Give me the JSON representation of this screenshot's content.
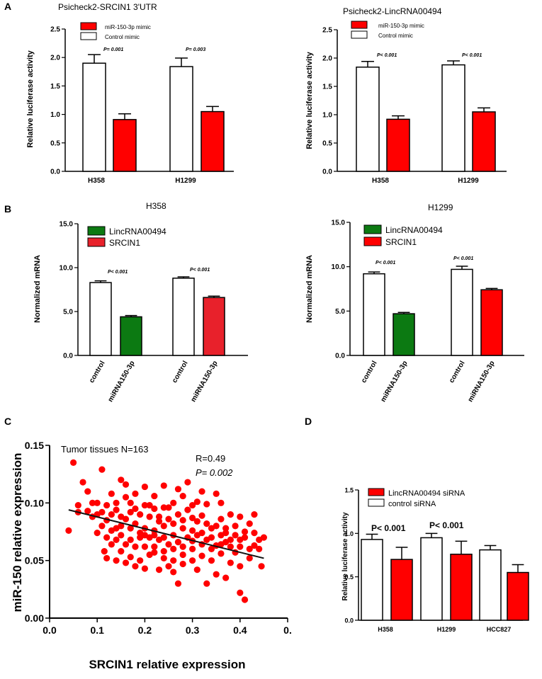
{
  "panels": [
    {
      "letter": "A"
    },
    {
      "letter": "B"
    },
    {
      "letter": "C"
    },
    {
      "letter": "D"
    }
  ],
  "chart_data": [
    {
      "id": "A1",
      "type": "bar",
      "title": "Psicheck2-SRCIN1 3'UTR",
      "xlabel": "",
      "ylabel": "Relative luciferase activity",
      "ylim": [
        0,
        2.5
      ],
      "yticks": [
        "0.0",
        "0.5",
        "1.0",
        "1.5",
        "2.0",
        "2.5"
      ],
      "categories": [
        "H358",
        "H1299"
      ],
      "series": [
        {
          "name": "Control mimic",
          "values": [
            1.9,
            1.84
          ],
          "errors": [
            0.15,
            0.15
          ],
          "color": "#ffffff"
        },
        {
          "name": "miR-150-3p mimic",
          "values": [
            0.91,
            1.05
          ],
          "errors": [
            0.1,
            0.09
          ],
          "color": "#ff0000"
        }
      ],
      "legend": [
        {
          "name": "miR-150-3p mimic",
          "color": "#ff0000"
        },
        {
          "name": "Control mimic",
          "color": "#ffffff"
        }
      ],
      "annotations": [
        "P= 0.001",
        "P= 0.003"
      ]
    },
    {
      "id": "A2",
      "type": "bar",
      "title": "Psicheck2-LincRNA00494",
      "xlabel": "",
      "ylabel": "Relative luciferase activity",
      "ylim": [
        0,
        2.5
      ],
      "yticks": [
        "0.0",
        "0.5",
        "1.0",
        "1.5",
        "2.0",
        "2.5"
      ],
      "categories": [
        "H358",
        "H1299"
      ],
      "series": [
        {
          "name": "Control mimic",
          "values": [
            1.84,
            1.88
          ],
          "errors": [
            0.1,
            0.07
          ],
          "color": "#ffffff"
        },
        {
          "name": "miR-150-3p mimic",
          "values": [
            0.92,
            1.05
          ],
          "errors": [
            0.06,
            0.07
          ],
          "color": "#ff0000"
        }
      ],
      "legend": [
        {
          "name": "miR-150-3p mimic",
          "color": "#ff0000"
        },
        {
          "name": "Control mimic",
          "color": "#ffffff"
        }
      ],
      "annotations": [
        "P< 0.001",
        "P< 0.001"
      ]
    },
    {
      "id": "B1",
      "type": "bar",
      "title": "H358",
      "xlabel": "",
      "ylabel": "Normalized mRNA",
      "ylim": [
        0,
        15
      ],
      "yticks": [
        "0.0",
        "5.0",
        "10.0",
        "15.0"
      ],
      "categories": [
        "control",
        "miRNA150-3p",
        "control",
        "miRNA150-3p"
      ],
      "values": [
        8.3,
        4.4,
        8.8,
        6.6
      ],
      "errors": [
        0.2,
        0.15,
        0.15,
        0.15
      ],
      "colors": [
        "#ffffff",
        "#0c7a12",
        "#ffffff",
        "#e8212b"
      ],
      "legend": [
        {
          "name": "LincRNA00494",
          "color": "#0c7a12"
        },
        {
          "name": "SRCIN1",
          "color": "#e8212b"
        }
      ],
      "annotations": [
        "P< 0.001",
        "P< 0.001"
      ]
    },
    {
      "id": "B2",
      "type": "bar",
      "title": "H1299",
      "xlabel": "",
      "ylabel": "Normalized mRNA",
      "ylim": [
        0,
        15
      ],
      "yticks": [
        "0.0",
        "5.0",
        "10.0",
        "15.0"
      ],
      "categories": [
        "control",
        "miRNA150-3p",
        "control",
        "miRNA150-3p"
      ],
      "values": [
        9.2,
        4.7,
        9.7,
        7.4
      ],
      "errors": [
        0.2,
        0.15,
        0.35,
        0.15
      ],
      "colors": [
        "#ffffff",
        "#0c7a12",
        "#ffffff",
        "#ff0000"
      ],
      "legend": [
        {
          "name": "LincRNA00494",
          "color": "#0c7a12"
        },
        {
          "name": "SRCIN1",
          "color": "#ff0000"
        }
      ],
      "annotations": [
        "P< 0.001",
        "P< 0.001"
      ]
    },
    {
      "id": "C",
      "type": "scatter",
      "title": "Tumor tissues  N=163",
      "xlabel": "SRCIN1  relative expression",
      "ylabel": "miR-150 relative expression",
      "xlim": [
        0.0,
        0.5
      ],
      "ylim": [
        0.0,
        0.15
      ],
      "xticks": [
        "0.0",
        "0.1",
        "0.2",
        "0.3",
        "0.4",
        "0."
      ],
      "yticks": [
        "0.00",
        "0.05",
        "0.10",
        "0.15"
      ],
      "stats": {
        "r": "R=0.49",
        "p": "P= 0.002"
      },
      "fit_line": {
        "x": [
          0.04,
          0.45
        ],
        "y": [
          0.094,
          0.052
        ]
      },
      "point_color": "#ff0000",
      "points": [
        [
          0.05,
          0.135
        ],
        [
          0.11,
          0.129
        ],
        [
          0.07,
          0.118
        ],
        [
          0.04,
          0.076
        ],
        [
          0.06,
          0.098
        ],
        [
          0.08,
          0.11
        ],
        [
          0.09,
          0.088
        ],
        [
          0.1,
          0.1
        ],
        [
          0.06,
          0.092
        ],
        [
          0.12,
          0.085
        ],
        [
          0.13,
          0.108
        ],
        [
          0.14,
          0.078
        ],
        [
          0.15,
          0.12
        ],
        [
          0.16,
          0.116
        ],
        [
          0.17,
          0.092
        ],
        [
          0.18,
          0.108
        ],
        [
          0.19,
          0.07
        ],
        [
          0.2,
          0.114
        ],
        [
          0.21,
          0.098
        ],
        [
          0.22,
          0.106
        ],
        [
          0.23,
          0.088
        ],
        [
          0.24,
          0.115
        ],
        [
          0.25,
          0.096
        ],
        [
          0.26,
          0.072
        ],
        [
          0.27,
          0.112
        ],
        [
          0.28,
          0.085
        ],
        [
          0.29,
          0.118
        ],
        [
          0.3,
          0.087
        ],
        [
          0.31,
          0.101
        ],
        [
          0.32,
          0.089
        ],
        [
          0.33,
          0.099
        ],
        [
          0.34,
          0.078
        ],
        [
          0.35,
          0.108
        ],
        [
          0.36,
          0.086
        ],
        [
          0.37,
          0.074
        ],
        [
          0.38,
          0.062
        ],
        [
          0.39,
          0.057
        ],
        [
          0.4,
          0.068
        ],
        [
          0.41,
          0.07
        ],
        [
          0.42,
          0.082
        ],
        [
          0.43,
          0.09
        ],
        [
          0.44,
          0.06
        ],
        [
          0.45,
          0.07
        ],
        [
          0.445,
          0.045
        ],
        [
          0.41,
          0.016
        ],
        [
          0.4,
          0.022
        ],
        [
          0.37,
          0.035
        ],
        [
          0.35,
          0.038
        ],
        [
          0.33,
          0.03
        ],
        [
          0.31,
          0.042
        ],
        [
          0.27,
          0.03
        ],
        [
          0.25,
          0.045
        ],
        [
          0.23,
          0.042
        ],
        [
          0.2,
          0.043
        ],
        [
          0.18,
          0.045
        ],
        [
          0.16,
          0.048
        ],
        [
          0.14,
          0.05
        ],
        [
          0.12,
          0.052
        ],
        [
          0.115,
          0.058
        ],
        [
          0.13,
          0.064
        ],
        [
          0.15,
          0.058
        ],
        [
          0.17,
          0.053
        ],
        [
          0.19,
          0.05
        ],
        [
          0.21,
          0.055
        ],
        [
          0.22,
          0.062
        ],
        [
          0.24,
          0.058
        ],
        [
          0.26,
          0.05
        ],
        [
          0.28,
          0.055
        ],
        [
          0.3,
          0.06
        ],
        [
          0.32,
          0.054
        ],
        [
          0.34,
          0.05
        ],
        [
          0.36,
          0.056
        ],
        [
          0.38,
          0.048
        ],
        [
          0.4,
          0.045
        ],
        [
          0.42,
          0.052
        ],
        [
          0.43,
          0.063
        ],
        [
          0.39,
          0.072
        ],
        [
          0.37,
          0.066
        ],
        [
          0.35,
          0.063
        ],
        [
          0.33,
          0.068
        ],
        [
          0.31,
          0.072
        ],
        [
          0.29,
          0.07
        ],
        [
          0.27,
          0.066
        ],
        [
          0.25,
          0.064
        ],
        [
          0.23,
          0.068
        ],
        [
          0.21,
          0.07
        ],
        [
          0.19,
          0.074
        ],
        [
          0.17,
          0.068
        ],
        [
          0.15,
          0.072
        ],
        [
          0.13,
          0.076
        ],
        [
          0.11,
          0.08
        ],
        [
          0.1,
          0.074
        ],
        [
          0.12,
          0.098
        ],
        [
          0.14,
          0.094
        ],
        [
          0.16,
          0.086
        ],
        [
          0.18,
          0.082
        ],
        [
          0.2,
          0.078
        ],
        [
          0.22,
          0.076
        ],
        [
          0.24,
          0.08
        ],
        [
          0.26,
          0.082
        ],
        [
          0.28,
          0.078
        ],
        [
          0.3,
          0.076
        ],
        [
          0.32,
          0.074
        ],
        [
          0.34,
          0.07
        ],
        [
          0.36,
          0.072
        ],
        [
          0.38,
          0.068
        ],
        [
          0.4,
          0.062
        ],
        [
          0.42,
          0.06
        ],
        [
          0.27,
          0.09
        ],
        [
          0.29,
          0.094
        ],
        [
          0.31,
          0.084
        ],
        [
          0.33,
          0.082
        ],
        [
          0.35,
          0.08
        ],
        [
          0.37,
          0.078
        ],
        [
          0.25,
          0.086
        ],
        [
          0.23,
          0.084
        ],
        [
          0.21,
          0.088
        ],
        [
          0.19,
          0.09
        ],
        [
          0.17,
          0.1
        ],
        [
          0.15,
          0.088
        ],
        [
          0.13,
          0.09
        ],
        [
          0.2,
          0.062
        ],
        [
          0.22,
          0.057
        ],
        [
          0.24,
          0.052
        ],
        [
          0.26,
          0.06
        ],
        [
          0.28,
          0.062
        ],
        [
          0.3,
          0.067
        ],
        [
          0.32,
          0.064
        ],
        [
          0.34,
          0.06
        ],
        [
          0.36,
          0.064
        ],
        [
          0.18,
          0.062
        ],
        [
          0.16,
          0.064
        ],
        [
          0.14,
          0.068
        ],
        [
          0.12,
          0.07
        ],
        [
          0.08,
          0.093
        ],
        [
          0.1,
          0.09
        ],
        [
          0.09,
          0.1
        ],
        [
          0.26,
          0.1
        ],
        [
          0.24,
          0.096
        ],
        [
          0.22,
          0.095
        ],
        [
          0.3,
          0.098
        ],
        [
          0.32,
          0.11
        ],
        [
          0.28,
          0.106
        ],
        [
          0.2,
          0.098
        ],
        [
          0.18,
          0.095
        ],
        [
          0.16,
          0.105
        ],
        [
          0.14,
          0.1
        ],
        [
          0.36,
          0.1
        ],
        [
          0.38,
          0.09
        ],
        [
          0.4,
          0.088
        ],
        [
          0.39,
          0.08
        ],
        [
          0.41,
          0.075
        ],
        [
          0.43,
          0.074
        ],
        [
          0.44,
          0.068
        ],
        [
          0.3,
          0.05
        ],
        [
          0.28,
          0.047
        ],
        [
          0.26,
          0.04
        ],
        [
          0.24,
          0.07
        ],
        [
          0.22,
          0.072
        ],
        [
          0.2,
          0.072
        ],
        [
          0.17,
          0.078
        ],
        [
          0.15,
          0.08
        ],
        [
          0.11,
          0.092
        ]
      ]
    },
    {
      "id": "D",
      "type": "bar",
      "title": "",
      "xlabel": "",
      "ylabel": "Relative luciferase activity",
      "ylim": [
        0,
        1.5
      ],
      "yticks": [
        "0.0",
        "0.5",
        "1.0",
        "1.5"
      ],
      "categories": [
        "H358",
        "H1299",
        "HCC827"
      ],
      "series": [
        {
          "name": "control siRNA",
          "values": [
            0.93,
            0.95,
            0.81
          ],
          "errors": [
            0.06,
            0.05,
            0.05
          ],
          "color": "#ffffff"
        },
        {
          "name": "LincRNA00494 siRNA",
          "values": [
            0.7,
            0.76,
            0.55
          ],
          "errors": [
            0.14,
            0.15,
            0.09
          ],
          "color": "#ff0000"
        }
      ],
      "legend": [
        {
          "name": "LincRNA00494 siRNA",
          "color": "#ff0000"
        },
        {
          "name": "control siRNA",
          "color": "#ffffff"
        }
      ],
      "annotations": [
        "P< 0.001",
        "P< 0.001"
      ]
    }
  ]
}
